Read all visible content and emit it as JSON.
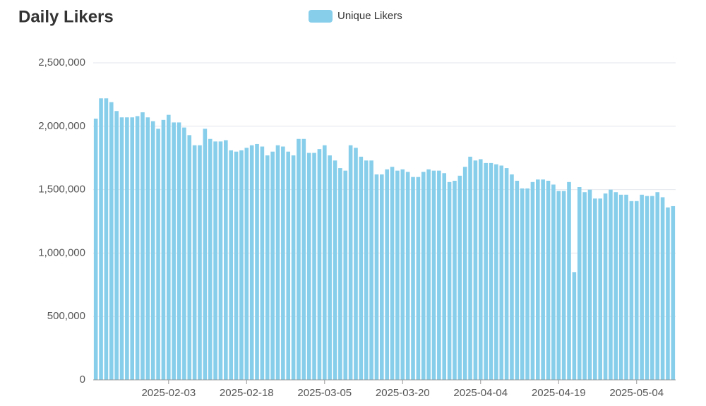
{
  "chart_data": {
    "type": "bar",
    "title": "Daily Likers",
    "categories": [
      null,
      null,
      null,
      null,
      null,
      null,
      null,
      null,
      null,
      null,
      null,
      null,
      null,
      null,
      "2025-02-03",
      null,
      null,
      null,
      null,
      null,
      null,
      null,
      null,
      null,
      null,
      null,
      null,
      null,
      null,
      "2025-02-18",
      null,
      null,
      null,
      null,
      null,
      null,
      null,
      null,
      null,
      null,
      null,
      null,
      null,
      null,
      "2025-03-05",
      null,
      null,
      null,
      null,
      null,
      null,
      null,
      null,
      null,
      null,
      null,
      null,
      null,
      null,
      "2025-03-20",
      null,
      null,
      null,
      null,
      null,
      null,
      null,
      null,
      null,
      null,
      null,
      null,
      null,
      null,
      "2025-04-04",
      null,
      null,
      null,
      null,
      null,
      null,
      null,
      null,
      null,
      null,
      null,
      null,
      null,
      null,
      "2025-04-19",
      null,
      null,
      null,
      null,
      null,
      null,
      null,
      null,
      null,
      null,
      null,
      null,
      null,
      null,
      "2025-05-04",
      null,
      null,
      null,
      null,
      null,
      null,
      null
    ],
    "series": [
      {
        "name": "Unique Likers",
        "color": "#87ceeb",
        "values": [
          2060000,
          2220000,
          2220000,
          2190000,
          2120000,
          2070000,
          2070000,
          2070000,
          2080000,
          2110000,
          2070000,
          2040000,
          1980000,
          2050000,
          2090000,
          2030000,
          2030000,
          1990000,
          1930000,
          1850000,
          1850000,
          1980000,
          1900000,
          1880000,
          1880000,
          1890000,
          1810000,
          1800000,
          1810000,
          1830000,
          1850000,
          1860000,
          1840000,
          1770000,
          1800000,
          1850000,
          1840000,
          1800000,
          1770000,
          1900000,
          1900000,
          1790000,
          1790000,
          1820000,
          1850000,
          1770000,
          1730000,
          1670000,
          1650000,
          1850000,
          1830000,
          1760000,
          1730000,
          1730000,
          1620000,
          1620000,
          1660000,
          1680000,
          1650000,
          1660000,
          1640000,
          1600000,
          1600000,
          1640000,
          1660000,
          1650000,
          1650000,
          1630000,
          1560000,
          1570000,
          1610000,
          1680000,
          1760000,
          1730000,
          1740000,
          1710000,
          1710000,
          1700000,
          1690000,
          1670000,
          1620000,
          1570000,
          1510000,
          1510000,
          1560000,
          1580000,
          1580000,
          1570000,
          1540000,
          1490000,
          1490000,
          1560000,
          850000,
          1520000,
          1480000,
          1500000,
          1430000,
          1430000,
          1470000,
          1500000,
          1480000,
          1460000,
          1460000,
          1410000,
          1410000,
          1460000,
          1450000,
          1450000,
          1480000,
          1440000,
          1360000,
          1370000
        ]
      }
    ],
    "ylim": [
      0,
      2500000
    ],
    "yticks": [
      0,
      {
        "value": 500000,
        "label": "500,000"
      },
      {
        "value": 1000000,
        "label": "1,000,000"
      },
      {
        "value": 1500000,
        "label": "1,500,000"
      },
      {
        "value": 2000000,
        "label": "2,000,000"
      },
      {
        "value": 2500000,
        "label": "2,500,000"
      }
    ],
    "grid": true,
    "legend": "top"
  }
}
